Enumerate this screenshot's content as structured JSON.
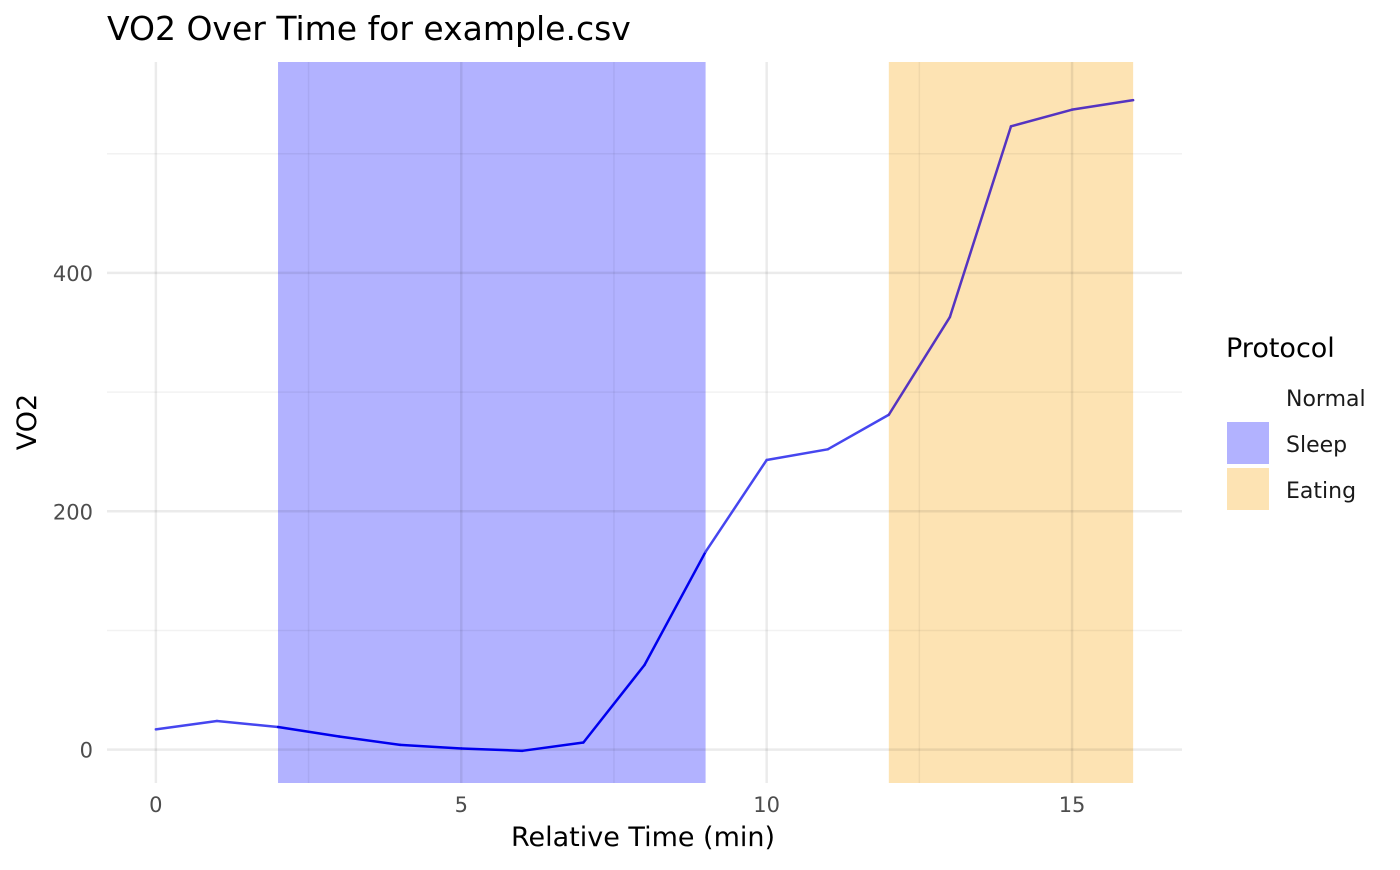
{
  "chart_data": {
    "type": "line",
    "title": "VO2 Over Time for example.csv",
    "xlabel": "Relative Time (min)",
    "ylabel": "VO2",
    "xlim": [
      -0.8,
      16.8
    ],
    "ylim": [
      -28,
      577
    ],
    "x_ticks": [
      0,
      5,
      10,
      15
    ],
    "x_minor_ticks": [
      2.5,
      7.5,
      12.5
    ],
    "y_ticks": [
      0,
      200,
      400
    ],
    "y_minor_ticks": [
      100,
      300,
      500
    ],
    "grid": true,
    "legend_title": "Protocol",
    "legend_position": "right",
    "legend": [
      {
        "label": "Normal",
        "color": "#ffffff"
      },
      {
        "label": "Sleep",
        "color": "#b2b2ff"
      },
      {
        "label": "Eating",
        "color": "#fde3b3"
      }
    ],
    "regions": [
      {
        "label": "Sleep",
        "x_start": 2,
        "x_end": 9,
        "color": "#b2b2ff"
      },
      {
        "label": "Eating",
        "x_start": 12,
        "x_end": 16,
        "color": "#fde3b3"
      }
    ],
    "series": [
      {
        "x": [
          0,
          1,
          2,
          3,
          4,
          5,
          6,
          7,
          8,
          9,
          10,
          11,
          12,
          13,
          14,
          15,
          16
        ],
        "values": [
          17,
          24,
          19,
          11,
          4,
          1,
          -1,
          6,
          71,
          166,
          243,
          252,
          281,
          363,
          523,
          537,
          545
        ],
        "segment_colors": [
          "#4646ef",
          "#4646ef",
          "#0000ee",
          "#0000ee",
          "#0000ee",
          "#0000ee",
          "#0000ee",
          "#0000ee",
          "#0000ee",
          "#4646ef",
          "#4646ef",
          "#4646ef",
          "#5534c1",
          "#5534c1",
          "#5534c1",
          "#5534c1"
        ]
      }
    ]
  }
}
